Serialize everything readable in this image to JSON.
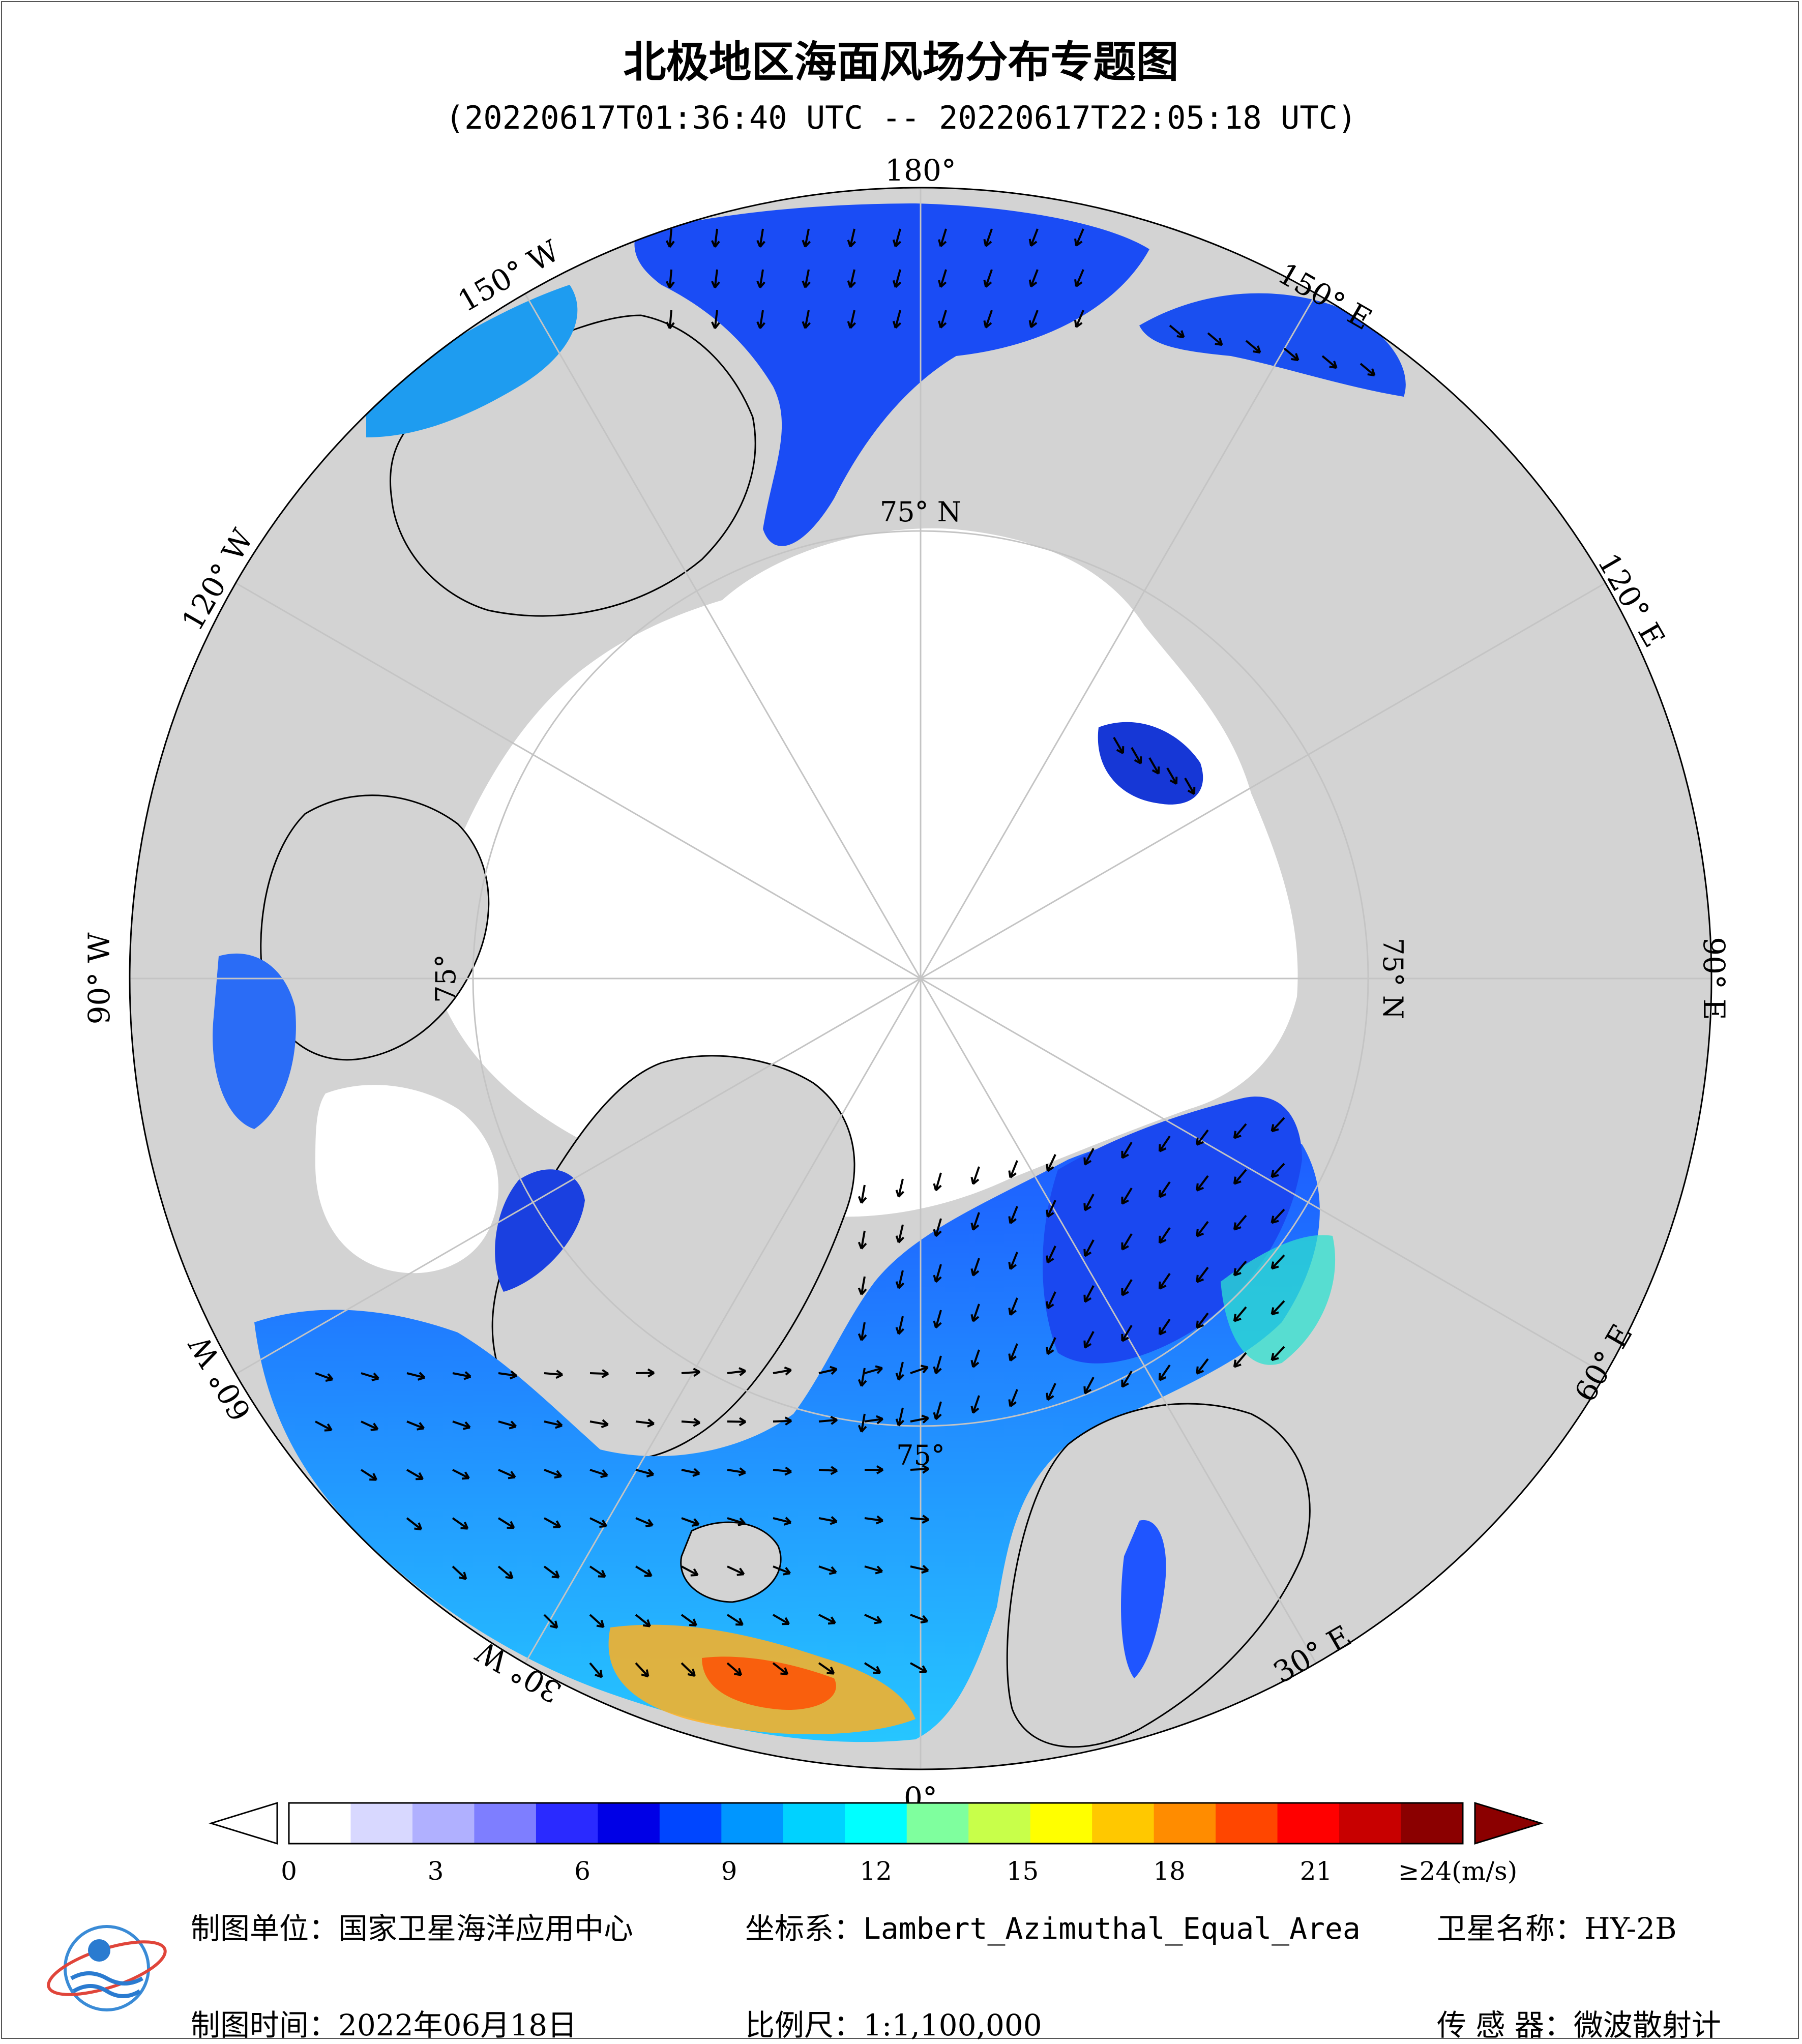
{
  "title": "北极地区海面风场分布专题图",
  "subtitle": "(20220617T01:36:40 UTC -- 20220617T22:05:18 UTC)",
  "map": {
    "longitude_labels": {
      "lon_180": "180°",
      "lon_150e": "150° E",
      "lon_120e": "120° E",
      "lon_90e": "90° E",
      "lon_60e": "60° E",
      "lon_30e": "30° E",
      "lon_0": "0°",
      "lon_30w": "30° W",
      "lon_60w": "60° W",
      "lon_90w": "90° W",
      "lon_120w": "120° W",
      "lon_150w": "150° W"
    },
    "latitude_labels": {
      "lat_top": "75° N",
      "lat_right": "75° N",
      "lat_bottom": "75°",
      "lat_left": "75°"
    },
    "colors": {
      "land": "#d3d3d3",
      "ice": "#ffffff",
      "coast": "#000000",
      "grid": "#c8c8c8"
    }
  },
  "colorbar": {
    "ticks": [
      "0",
      "3",
      "6",
      "9",
      "12",
      "15",
      "18",
      "21",
      "≥24(m/s)"
    ],
    "colors": [
      "#ffffff",
      "#d8d8ff",
      "#b0b0ff",
      "#7e7eff",
      "#2a2aff",
      "#0000e6",
      "#0046ff",
      "#0096ff",
      "#00d2ff",
      "#00ffff",
      "#7fff9e",
      "#c8ff4a",
      "#ffff00",
      "#ffc800",
      "#ff8c00",
      "#ff4600",
      "#ff0000",
      "#c80000",
      "#8b0000"
    ],
    "under_color": "#ffffff",
    "over_color": "#8b0000"
  },
  "footer": {
    "unit_label": "制图单位：国家卫星海洋应用中心",
    "date_label": "制图时间：2022年06月18日",
    "crs_label": "坐标系：",
    "crs_value": "Lambert_Azimuthal_Equal_Area",
    "scale_label": "比例尺：1:1,100,000",
    "satellite_label": "卫星名称：HY-2B",
    "sensor_label": "传 感 器：微波散射计"
  },
  "logo": {
    "icon": "nsoas-logo-icon"
  }
}
